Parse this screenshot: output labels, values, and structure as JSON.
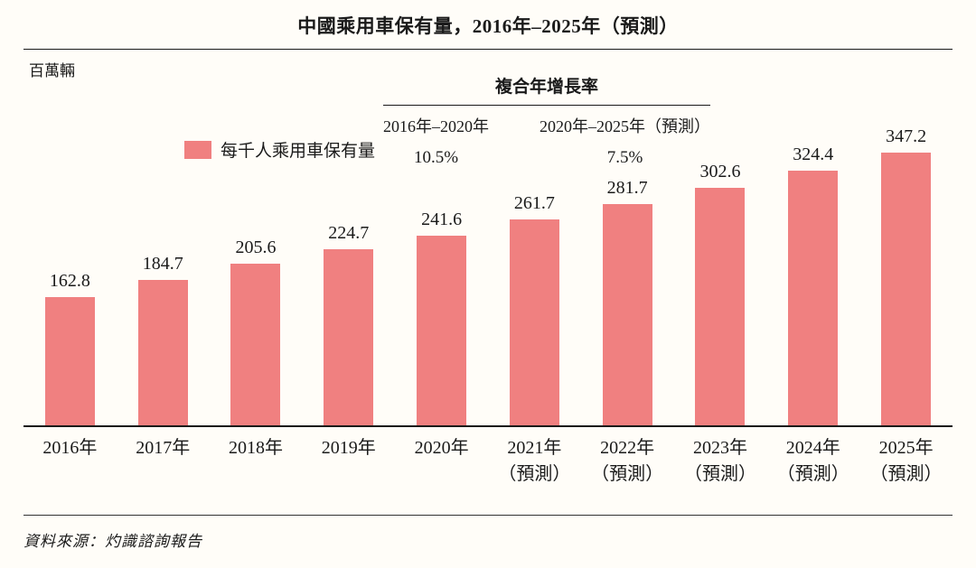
{
  "title": "中國乘用車保有量，2016年–2025年（預測）",
  "unit_label": "百萬輛",
  "legend": {
    "label": "每千人乘用車保有量",
    "swatch_color": "#f08080"
  },
  "cagr": {
    "header": "複合年增長率",
    "periods": [
      {
        "range": "2016年–2020年",
        "value": "10.5%"
      },
      {
        "range": "2020年–2025年（預測）",
        "value": "7.5%"
      }
    ]
  },
  "source": "資料來源：灼識諮詢報告",
  "chart_data": {
    "type": "bar",
    "title": "中國乘用車保有量，2016年–2025年（預測）",
    "ylabel": "百萬輛",
    "series_name": "每千人乘用車保有量",
    "categories": [
      "2016年",
      "2017年",
      "2018年",
      "2019年",
      "2020年",
      "2021年（預測）",
      "2022年（預測）",
      "2023年（預測）",
      "2024年（預測）",
      "2025年（預測）"
    ],
    "x_axis": [
      {
        "year": "2016年",
        "note": ""
      },
      {
        "year": "2017年",
        "note": ""
      },
      {
        "year": "2018年",
        "note": ""
      },
      {
        "year": "2019年",
        "note": ""
      },
      {
        "year": "2020年",
        "note": ""
      },
      {
        "year": "2021年",
        "note": "（預測）"
      },
      {
        "year": "2022年",
        "note": "（預測）"
      },
      {
        "year": "2023年",
        "note": "（預測）"
      },
      {
        "year": "2024年",
        "note": "（預測）"
      },
      {
        "year": "2025年",
        "note": "（預測）"
      }
    ],
    "values": [
      162.8,
      184.7,
      205.6,
      224.7,
      241.6,
      261.7,
      281.7,
      302.6,
      324.4,
      347.2
    ],
    "bar_color": "#f08080",
    "ylim": [
      0,
      360
    ],
    "grid": false,
    "legend_position": "upper-left",
    "annotations": [
      "複合年增長率",
      "2016年–2020年: 10.5%",
      "2020年–2025年（預測）: 7.5%"
    ]
  }
}
